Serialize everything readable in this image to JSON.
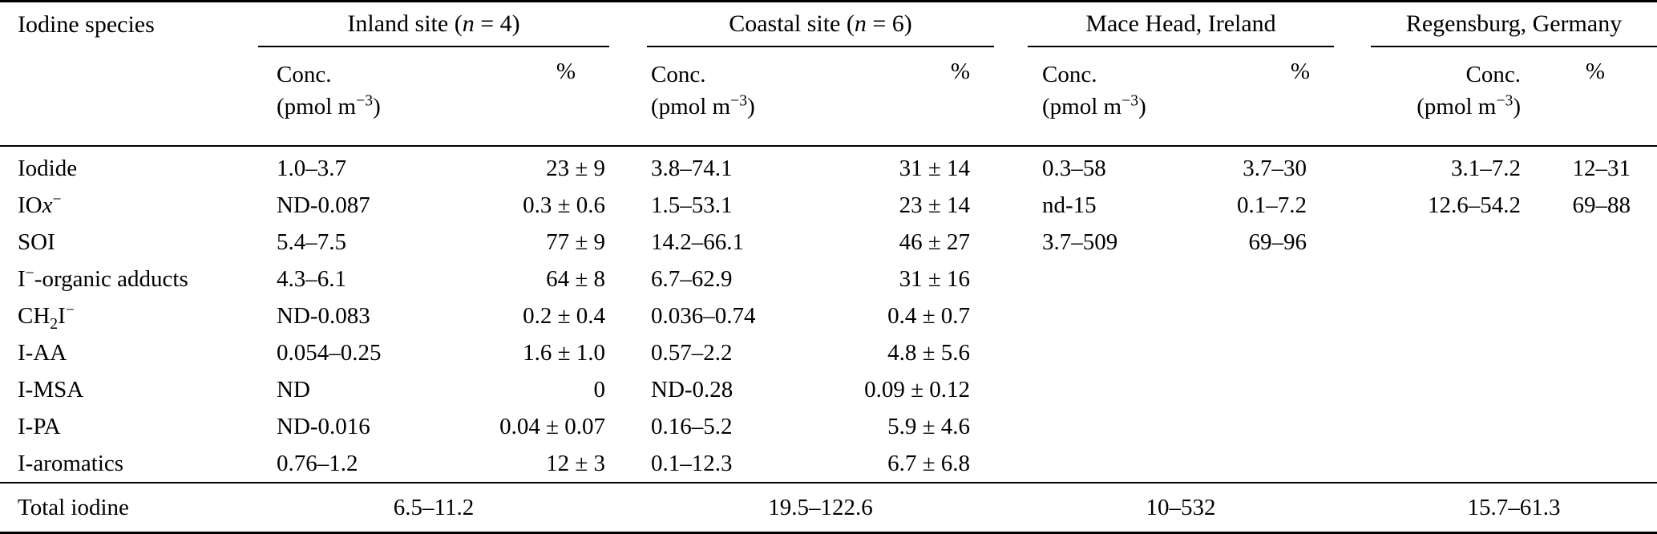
{
  "colors": {
    "text": "#000000",
    "background": "#ffffff",
    "rule": "#000000"
  },
  "table": {
    "species_header": "Iodine species",
    "groups": [
      {
        "label": "Inland site (<i>n</i> = 4)",
        "conc_label": "Conc.",
        "unit_label": "(pmol m<sup>−3</sup>)",
        "pct_label": "%"
      },
      {
        "label": "Coastal site (<i>n</i> = 6)",
        "conc_label": "Conc.",
        "unit_label": "(pmol m<sup>−3</sup>)",
        "pct_label": "%"
      },
      {
        "label": "Mace Head, Ireland",
        "conc_label": "Conc.",
        "unit_label": "(pmol m<sup>−3</sup>)",
        "pct_label": "%"
      },
      {
        "label": "Regensburg, Germany",
        "conc_label": "Conc.",
        "unit_label": "(pmol m<sup>−3</sup>)",
        "pct_label": "%"
      }
    ],
    "rows": [
      {
        "species": "Iodide",
        "cells": [
          "1.0–3.7",
          "23 ± 9",
          "3.8–74.1",
          "31 ± 14",
          "0.3–58",
          "3.7–30",
          "3.1–7.2",
          "12–31"
        ]
      },
      {
        "species": "IO<i>x</i><sup>−</sup>",
        "cells": [
          "ND-0.087",
          "0.3 ± 0.6",
          "1.5–53.1",
          "23 ± 14",
          "nd-15",
          "0.1–7.2",
          "12.6–54.2",
          "69–88"
        ]
      },
      {
        "species": "SOI",
        "cells": [
          "5.4–7.5",
          "77 ± 9",
          "14.2–66.1",
          "46 ± 27",
          "3.7–509",
          "69–96",
          "",
          ""
        ]
      },
      {
        "species": "I<sup>−</sup>-organic adducts",
        "cells": [
          "4.3–6.1",
          "64 ± 8",
          "6.7–62.9",
          "31 ± 16",
          "",
          "",
          "",
          ""
        ]
      },
      {
        "species": "CH<sub>2</sub>I<sup>−</sup>",
        "cells": [
          "ND-0.083",
          "0.2 ± 0.4",
          "0.036–0.74",
          "0.4 ± 0.7",
          "",
          "",
          "",
          ""
        ]
      },
      {
        "species": "I-AA",
        "cells": [
          "0.054–0.25",
          "1.6 ± 1.0",
          "0.57–2.2",
          "4.8 ± 5.6",
          "",
          "",
          "",
          ""
        ]
      },
      {
        "species": "I-MSA",
        "cells": [
          "ND",
          "0",
          "ND-0.28",
          "0.09 ± 0.12",
          "",
          "",
          "",
          ""
        ]
      },
      {
        "species": "I-PA",
        "cells": [
          "ND-0.016",
          "0.04 ± 0.07",
          "0.16–5.2",
          "5.9 ± 4.6",
          "",
          "",
          "",
          ""
        ]
      },
      {
        "species": "I-aromatics",
        "cells": [
          "0.76–1.2",
          "12 ± 3",
          "0.1–12.3",
          "6.7 ± 6.8",
          "",
          "",
          "",
          ""
        ]
      }
    ],
    "total_row": {
      "label": "Total iodine",
      "values": [
        "6.5–11.2",
        "19.5–122.6",
        "10–532",
        "15.7–61.3"
      ]
    }
  }
}
